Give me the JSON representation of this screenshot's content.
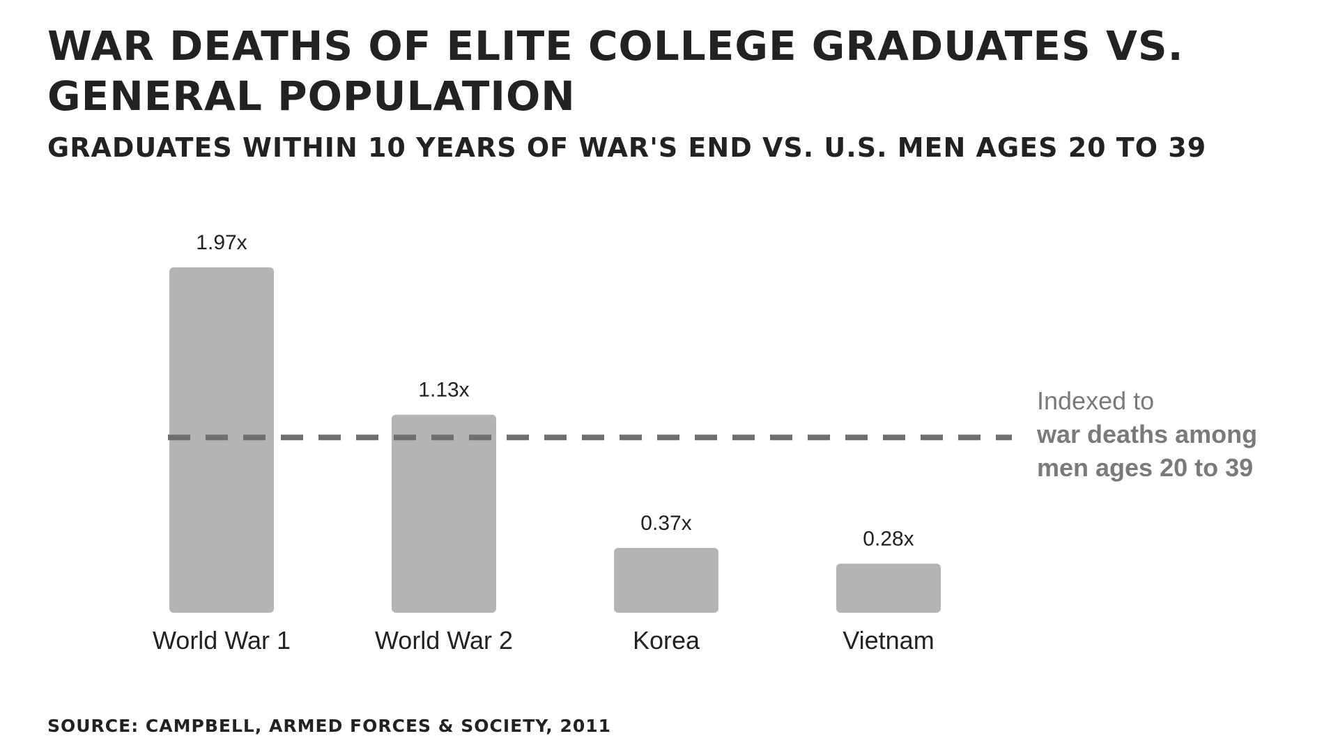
{
  "chart_data": {
    "type": "bar",
    "title": "WAR DEATHS OF ELITE COLLEGE GRADUATES VS. GENERAL POPULATION",
    "subtitle": "GRADUATES WITHIN 10 YEARS OF WAR'S END VS. U.S. MEN AGES 20 TO 39",
    "categories": [
      "World War 1",
      "World War 2",
      "Korea",
      "Vietnam"
    ],
    "values": [
      1.97,
      1.13,
      0.37,
      0.28
    ],
    "data_labels": [
      "1.97x",
      "1.13x",
      "0.37x",
      "0.28x"
    ],
    "ylim": [
      0,
      1.97
    ],
    "reference_line": {
      "value": 1.0,
      "style": "dashed",
      "label_line1": "Indexed to",
      "label_line2": "war deaths among",
      "label_line3": "men ages 20 to 39"
    },
    "grid": false,
    "legend": "none",
    "colors": {
      "bar": "#b5b4b5",
      "reference_line": "#6e6e6e",
      "text": "#222222",
      "note": "#7a7a7a"
    }
  },
  "source": "SOURCE: CAMPBELL, ARMED FORCES & SOCIETY, 2011"
}
